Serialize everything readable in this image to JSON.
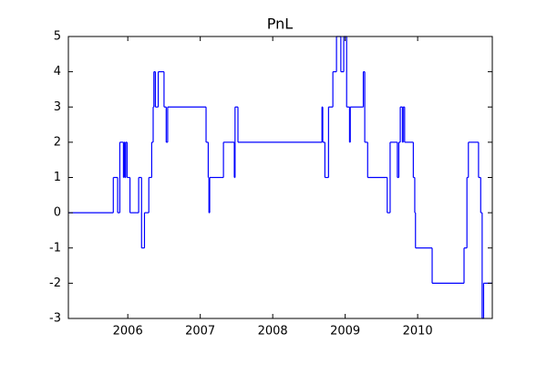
{
  "chart_data": {
    "type": "step",
    "title": "PnL",
    "x": [
      2005.18,
      2005.8,
      2005.86,
      2005.89,
      2005.94,
      2005.95,
      2005.96,
      2005.97,
      2005.99,
      2006.03,
      2006.15,
      2006.19,
      2006.23,
      2006.29,
      2006.33,
      2006.35,
      2006.36,
      2006.38,
      2006.42,
      2006.5,
      2006.53,
      2006.55,
      2007.08,
      2007.11,
      2007.12,
      2007.13,
      2007.32,
      2007.47,
      2007.48,
      2007.52,
      2008.68,
      2008.69,
      2008.72,
      2008.77,
      2008.83,
      2008.88,
      2008.94,
      2008.98,
      2009.02,
      2009.06,
      2009.07,
      2009.25,
      2009.27,
      2009.31,
      2009.58,
      2009.62,
      2009.72,
      2009.74,
      2009.76,
      2009.79,
      2009.8,
      2009.82,
      2009.94,
      2009.96,
      2009.97,
      2010.2,
      2010.64,
      2010.68,
      2010.7,
      2010.84,
      2010.87,
      2010.89,
      2010.91
    ],
    "values": [
      0,
      1,
      0,
      2,
      1,
      2,
      1,
      2,
      1,
      0,
      1,
      -1,
      0,
      1,
      2,
      3,
      4,
      3,
      4,
      3,
      2,
      3,
      2,
      1,
      0,
      1,
      2,
      1,
      3,
      2,
      3,
      2,
      1,
      3,
      4,
      5,
      4,
      5,
      3,
      2,
      3,
      4,
      2,
      1,
      0,
      2,
      1,
      2,
      3,
      2,
      3,
      2,
      1,
      0,
      -1,
      -2,
      -1,
      1,
      2,
      1,
      0,
      -3,
      -2
    ],
    "color": "#0000ff",
    "xlim": [
      2005.18,
      2011.03
    ],
    "xticks": [
      2006,
      2007,
      2008,
      2009,
      2010
    ],
    "ylim": [
      -3,
      5
    ],
    "yticks": [
      -3,
      -2,
      -1,
      0,
      1,
      2,
      3,
      4,
      5
    ]
  }
}
